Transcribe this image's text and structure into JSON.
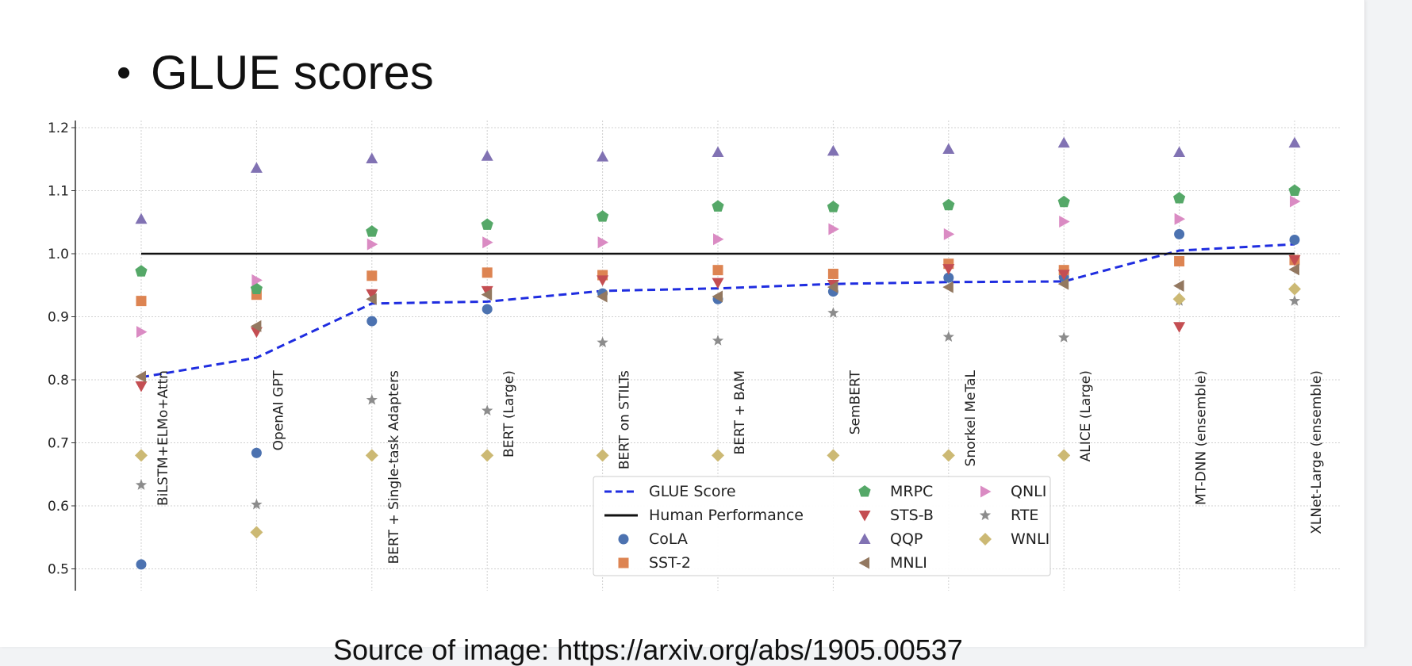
{
  "slide": {
    "bullet": "•",
    "title": "GLUE scores",
    "source_text": "Source of image: https://arxiv.org/abs/1905.00537"
  },
  "colors": {
    "glue_line": "#1f2de0",
    "human_line": "#111111",
    "CoLA": "#4c72b0",
    "SST-2": "#dd8452",
    "MRPC": "#55a868",
    "STS-B": "#c44e52",
    "QQP": "#8172b3",
    "MNLI": "#937860",
    "QNLI": "#da8bc3",
    "RTE": "#8c8c8c",
    "WNLI": "#ccb974"
  },
  "chart_data": {
    "type": "scatter",
    "categories": [
      "BiLSTM+ELMo+Attn",
      "OpenAI GPT",
      "BERT + Single-task Adapters",
      "BERT (Large)",
      "BERT on STILTs",
      "BERT + BAM",
      "SemBERT",
      "Snorkel MeTaL",
      "ALICE (Large)",
      "MT-DNN (ensemble)",
      "XLNet-Large (ensemble)"
    ],
    "ylim": [
      0.48,
      1.22
    ],
    "yticks": [
      "0.5",
      "0.6",
      "0.7",
      "0.8",
      "0.9",
      "1.0",
      "1.1",
      "1.2"
    ],
    "grid": true,
    "legend_position": "bottom-center",
    "series": [
      {
        "name": "GLUE Score",
        "kind": "line",
        "style": "dashed",
        "values": [
          0.804,
          0.835,
          0.921,
          0.924,
          0.941,
          0.945,
          0.952,
          0.955,
          0.956,
          1.005,
          1.015
        ]
      },
      {
        "name": "Human Performance",
        "kind": "line",
        "style": "solid",
        "values": [
          1.0,
          1.0,
          1.0,
          1.0,
          1.0,
          1.0,
          1.0,
          1.0,
          1.0,
          1.0,
          1.0
        ]
      },
      {
        "name": "CoLA",
        "marker": "circle",
        "values": [
          0.507,
          0.684,
          0.893,
          0.912,
          0.937,
          0.928,
          0.94,
          0.962,
          0.963,
          1.031,
          1.022
        ]
      },
      {
        "name": "SST-2",
        "marker": "square",
        "values": [
          0.925,
          0.935,
          0.965,
          0.97,
          0.966,
          0.974,
          0.968,
          0.984,
          0.974,
          0.988,
          0.99
        ]
      },
      {
        "name": "MRPC",
        "marker": "pentagon",
        "values": [
          0.972,
          0.944,
          1.035,
          1.046,
          1.059,
          1.075,
          1.074,
          1.077,
          1.082,
          1.088,
          1.1
        ]
      },
      {
        "name": "STS-B",
        "marker": "triangle-down",
        "values": [
          0.79,
          0.876,
          0.936,
          0.941,
          0.958,
          0.954,
          0.951,
          0.976,
          0.967,
          0.884,
          0.99
        ]
      },
      {
        "name": "QQP",
        "marker": "triangle-up",
        "values": [
          1.055,
          1.136,
          1.151,
          1.155,
          1.154,
          1.161,
          1.163,
          1.166,
          1.176,
          1.161,
          1.176
        ]
      },
      {
        "name": "MNLI",
        "marker": "triangle-left",
        "values": [
          0.805,
          0.885,
          0.928,
          0.935,
          0.932,
          0.932,
          0.947,
          0.947,
          0.952,
          0.949,
          0.975
        ]
      },
      {
        "name": "QNLI",
        "marker": "triangle-right",
        "values": [
          0.876,
          0.958,
          1.015,
          1.018,
          1.018,
          1.023,
          1.039,
          1.031,
          1.051,
          1.055,
          1.083
        ]
      },
      {
        "name": "RTE",
        "marker": "star",
        "values": [
          0.633,
          0.602,
          0.768,
          0.751,
          0.859,
          0.862,
          0.906,
          0.868,
          0.867,
          0.925,
          0.925
        ]
      },
      {
        "name": "WNLI",
        "marker": "diamond",
        "values": [
          0.68,
          0.558,
          0.68,
          0.68,
          0.68,
          0.68,
          0.68,
          0.68,
          0.68,
          0.928,
          0.944
        ]
      }
    ],
    "legend_columns": [
      [
        "GLUE Score",
        "Human Performance",
        "CoLA",
        "SST-2"
      ],
      [
        "MRPC",
        "STS-B",
        "QQP",
        "MNLI"
      ],
      [
        "QNLI",
        "RTE",
        "WNLI"
      ]
    ]
  }
}
